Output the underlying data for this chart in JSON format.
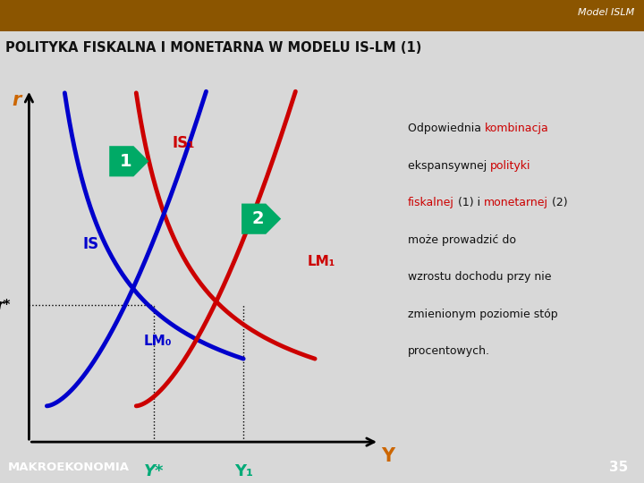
{
  "header_bg_top": "#b87000",
  "header_bg_bottom": "#d48a00",
  "header_text": "POLITYKA FISKALNA I MONETARNA W MODELU IS-LM (1)",
  "model_label": "Model ISLM",
  "footer_color": "#0000aa",
  "footer_text": "MAKROEKONOMIA",
  "footer_number": "35",
  "slide_bg": "#d8d8d8",
  "plot_bg": "#ffffff",
  "text_box_bg": "#c8ccee",
  "text_box_border": "#9999bb",
  "IS_color": "#0000cc",
  "IS1_color": "#cc0000",
  "LM0_color": "#0000cc",
  "LM1_color": "#cc0000",
  "orange_color": "#cc6600",
  "teal_color": "#00aa77",
  "green_badge": "#00aa66",
  "axis_label_color": "#cc6600",
  "r_star_color": "#cc6600",
  "Ystar_color": "#00aa77",
  "Y1_color": "#00aa77",
  "black": "#000000",
  "white": "#ffffff",
  "red_text": "#cc0000",
  "annotation_black": "#111111"
}
